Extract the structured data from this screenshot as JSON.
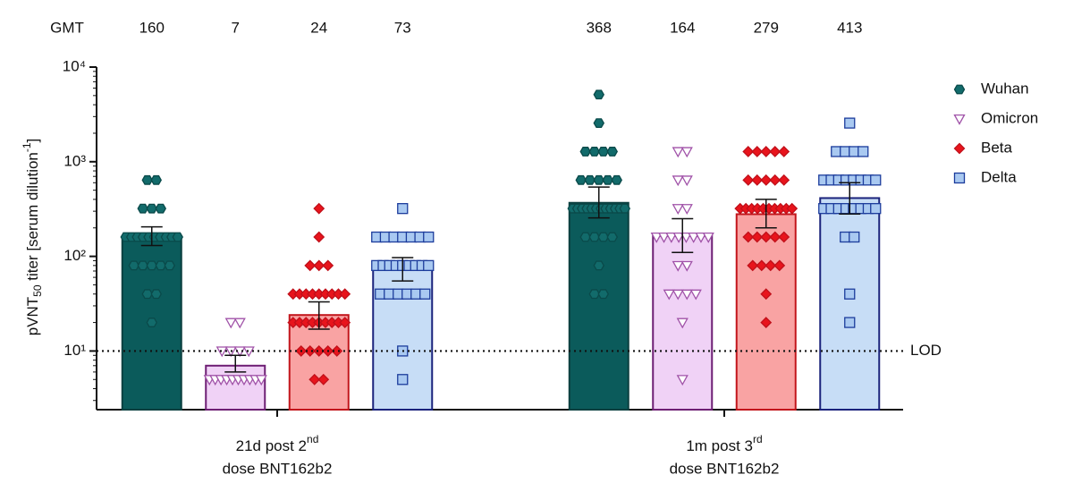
{
  "chart_data": {
    "type": "bar",
    "y_label": {
      "pre": "pVNT",
      "sub": "50",
      "mid": " titer [serum dilution",
      "sup": "-1",
      "post": "]"
    },
    "header_label": "GMT",
    "categories": [
      {
        "line1": "21d post 2",
        "sup": "nd",
        "line2": "dose BNT162b2"
      },
      {
        "line1": "1m post 3",
        "sup": "rd",
        "line2": "dose BNT162b2"
      }
    ],
    "log_scale": true,
    "ylim": [
      2.4,
      10000
    ],
    "yticks": [
      {
        "value": 10,
        "label": "10¹"
      },
      {
        "value": 100,
        "label": "10²"
      },
      {
        "value": 1000,
        "label": "10³"
      },
      {
        "value": 10000,
        "label": "10⁴"
      }
    ],
    "lod": {
      "value": 10,
      "label": "LOD"
    },
    "legend": "right",
    "series": [
      {
        "name": "Wuhan",
        "marker": "hexagon",
        "color": "#0b5b5b",
        "edge": "#0a3f3f",
        "marker_color": "#126b6b",
        "marker_edge": "#0a4a4a",
        "values": [
          160,
          368
        ],
        "error_low": [
          130,
          255
        ],
        "error_high": [
          205,
          540
        ],
        "points": [
          [
            640,
            640,
            320,
            320,
            320,
            160,
            160,
            160,
            160,
            160,
            160,
            160,
            160,
            160,
            160,
            80,
            80,
            80,
            80,
            80,
            40,
            40,
            20
          ],
          [
            5120,
            2560,
            1280,
            1280,
            1280,
            1280,
            640,
            640,
            640,
            640,
            640,
            320,
            320,
            320,
            320,
            320,
            320,
            320,
            320,
            320,
            320,
            320,
            320,
            160,
            160,
            160,
            160,
            80,
            40,
            40
          ]
        ]
      },
      {
        "name": "Omicron",
        "marker": "triangle-down",
        "color": "#f0d2f6",
        "edge": "#6e1f74",
        "marker_color": "#ffffff",
        "marker_edge": "#a052a8",
        "values": [
          7,
          164
        ],
        "error_low": [
          6,
          110
        ],
        "error_high": [
          9,
          250
        ],
        "points": [
          [
            20,
            20,
            10,
            10,
            10,
            10,
            5,
            5,
            5,
            5,
            5,
            5,
            5,
            5,
            5,
            5
          ],
          [
            1280,
            1280,
            640,
            640,
            320,
            320,
            160,
            160,
            160,
            160,
            160,
            160,
            160,
            160,
            80,
            80,
            40,
            40,
            40,
            40,
            20,
            5
          ]
        ]
      },
      {
        "name": "Beta",
        "marker": "diamond",
        "color": "#f9a3a3",
        "edge": "#c2161c",
        "marker_color": "#e8141c",
        "marker_edge": "#c0101a",
        "values": [
          24,
          279
        ],
        "error_low": [
          17,
          200
        ],
        "error_high": [
          33,
          400
        ],
        "points": [
          [
            320,
            160,
            80,
            80,
            80,
            40,
            40,
            40,
            40,
            40,
            40,
            40,
            40,
            40,
            20,
            20,
            20,
            20,
            20,
            20,
            20,
            20,
            20,
            10,
            10,
            10,
            10,
            10,
            5,
            5
          ],
          [
            1280,
            1280,
            1280,
            1280,
            1280,
            640,
            640,
            640,
            640,
            640,
            320,
            320,
            320,
            320,
            320,
            320,
            320,
            320,
            320,
            320,
            160,
            160,
            160,
            160,
            160,
            80,
            80,
            80,
            80,
            40,
            20
          ]
        ]
      },
      {
        "name": "Delta",
        "marker": "square",
        "color": "#c7ddf6",
        "edge": "#1b237c",
        "marker_color": "#a9c9f1",
        "marker_edge": "#1c3c9c",
        "values": [
          73,
          413
        ],
        "error_low": [
          55,
          280
        ],
        "error_high": [
          97,
          600
        ],
        "points": [
          [
            320,
            160,
            160,
            160,
            160,
            160,
            160,
            160,
            80,
            80,
            80,
            80,
            80,
            80,
            80,
            80,
            80,
            40,
            40,
            40,
            40,
            40,
            40,
            10,
            5
          ],
          [
            2560,
            1280,
            1280,
            1280,
            1280,
            640,
            640,
            640,
            640,
            640,
            640,
            640,
            640,
            320,
            320,
            320,
            320,
            320,
            320,
            320,
            320,
            160,
            160,
            40,
            20
          ]
        ]
      }
    ]
  }
}
